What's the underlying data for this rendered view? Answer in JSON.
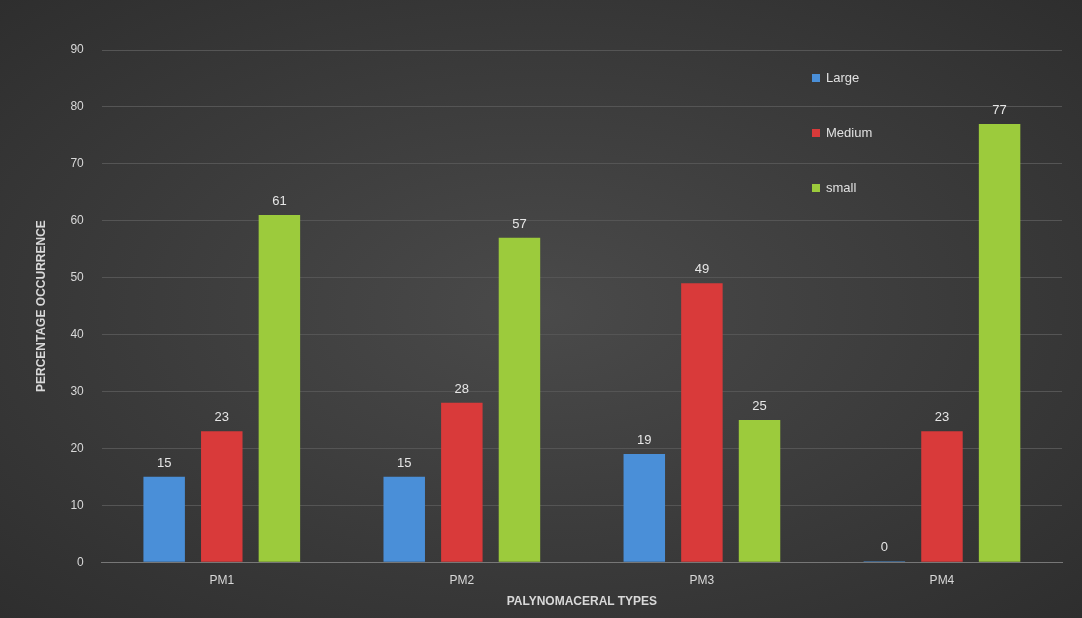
{
  "chart_data": {
    "type": "bar",
    "xlabel": "PALYNOMACERAL TYPES",
    "ylabel": "PERCENTAGE OCCURRENCE",
    "categories": [
      "PM1",
      "PM2",
      "PM3",
      "PM4"
    ],
    "series": [
      {
        "name": "Large",
        "color": "#4a8fd8",
        "values": [
          15,
          15,
          19,
          0
        ],
        "value_labels": [
          "15",
          "15",
          "19",
          "0"
        ]
      },
      {
        "name": "Medium",
        "color": "#d93a3a",
        "values": [
          23,
          28,
          49,
          23
        ]
      },
      {
        "name": "small",
        "color": "#9ccb3c",
        "values": [
          61,
          57,
          25,
          77
        ]
      }
    ],
    "ylim": [
      0,
      90
    ],
    "yticks": [
      0,
      10,
      20,
      30,
      40,
      50,
      60,
      70,
      80,
      90
    ],
    "grid": "y",
    "legend": "top right",
    "data_labels": true
  }
}
